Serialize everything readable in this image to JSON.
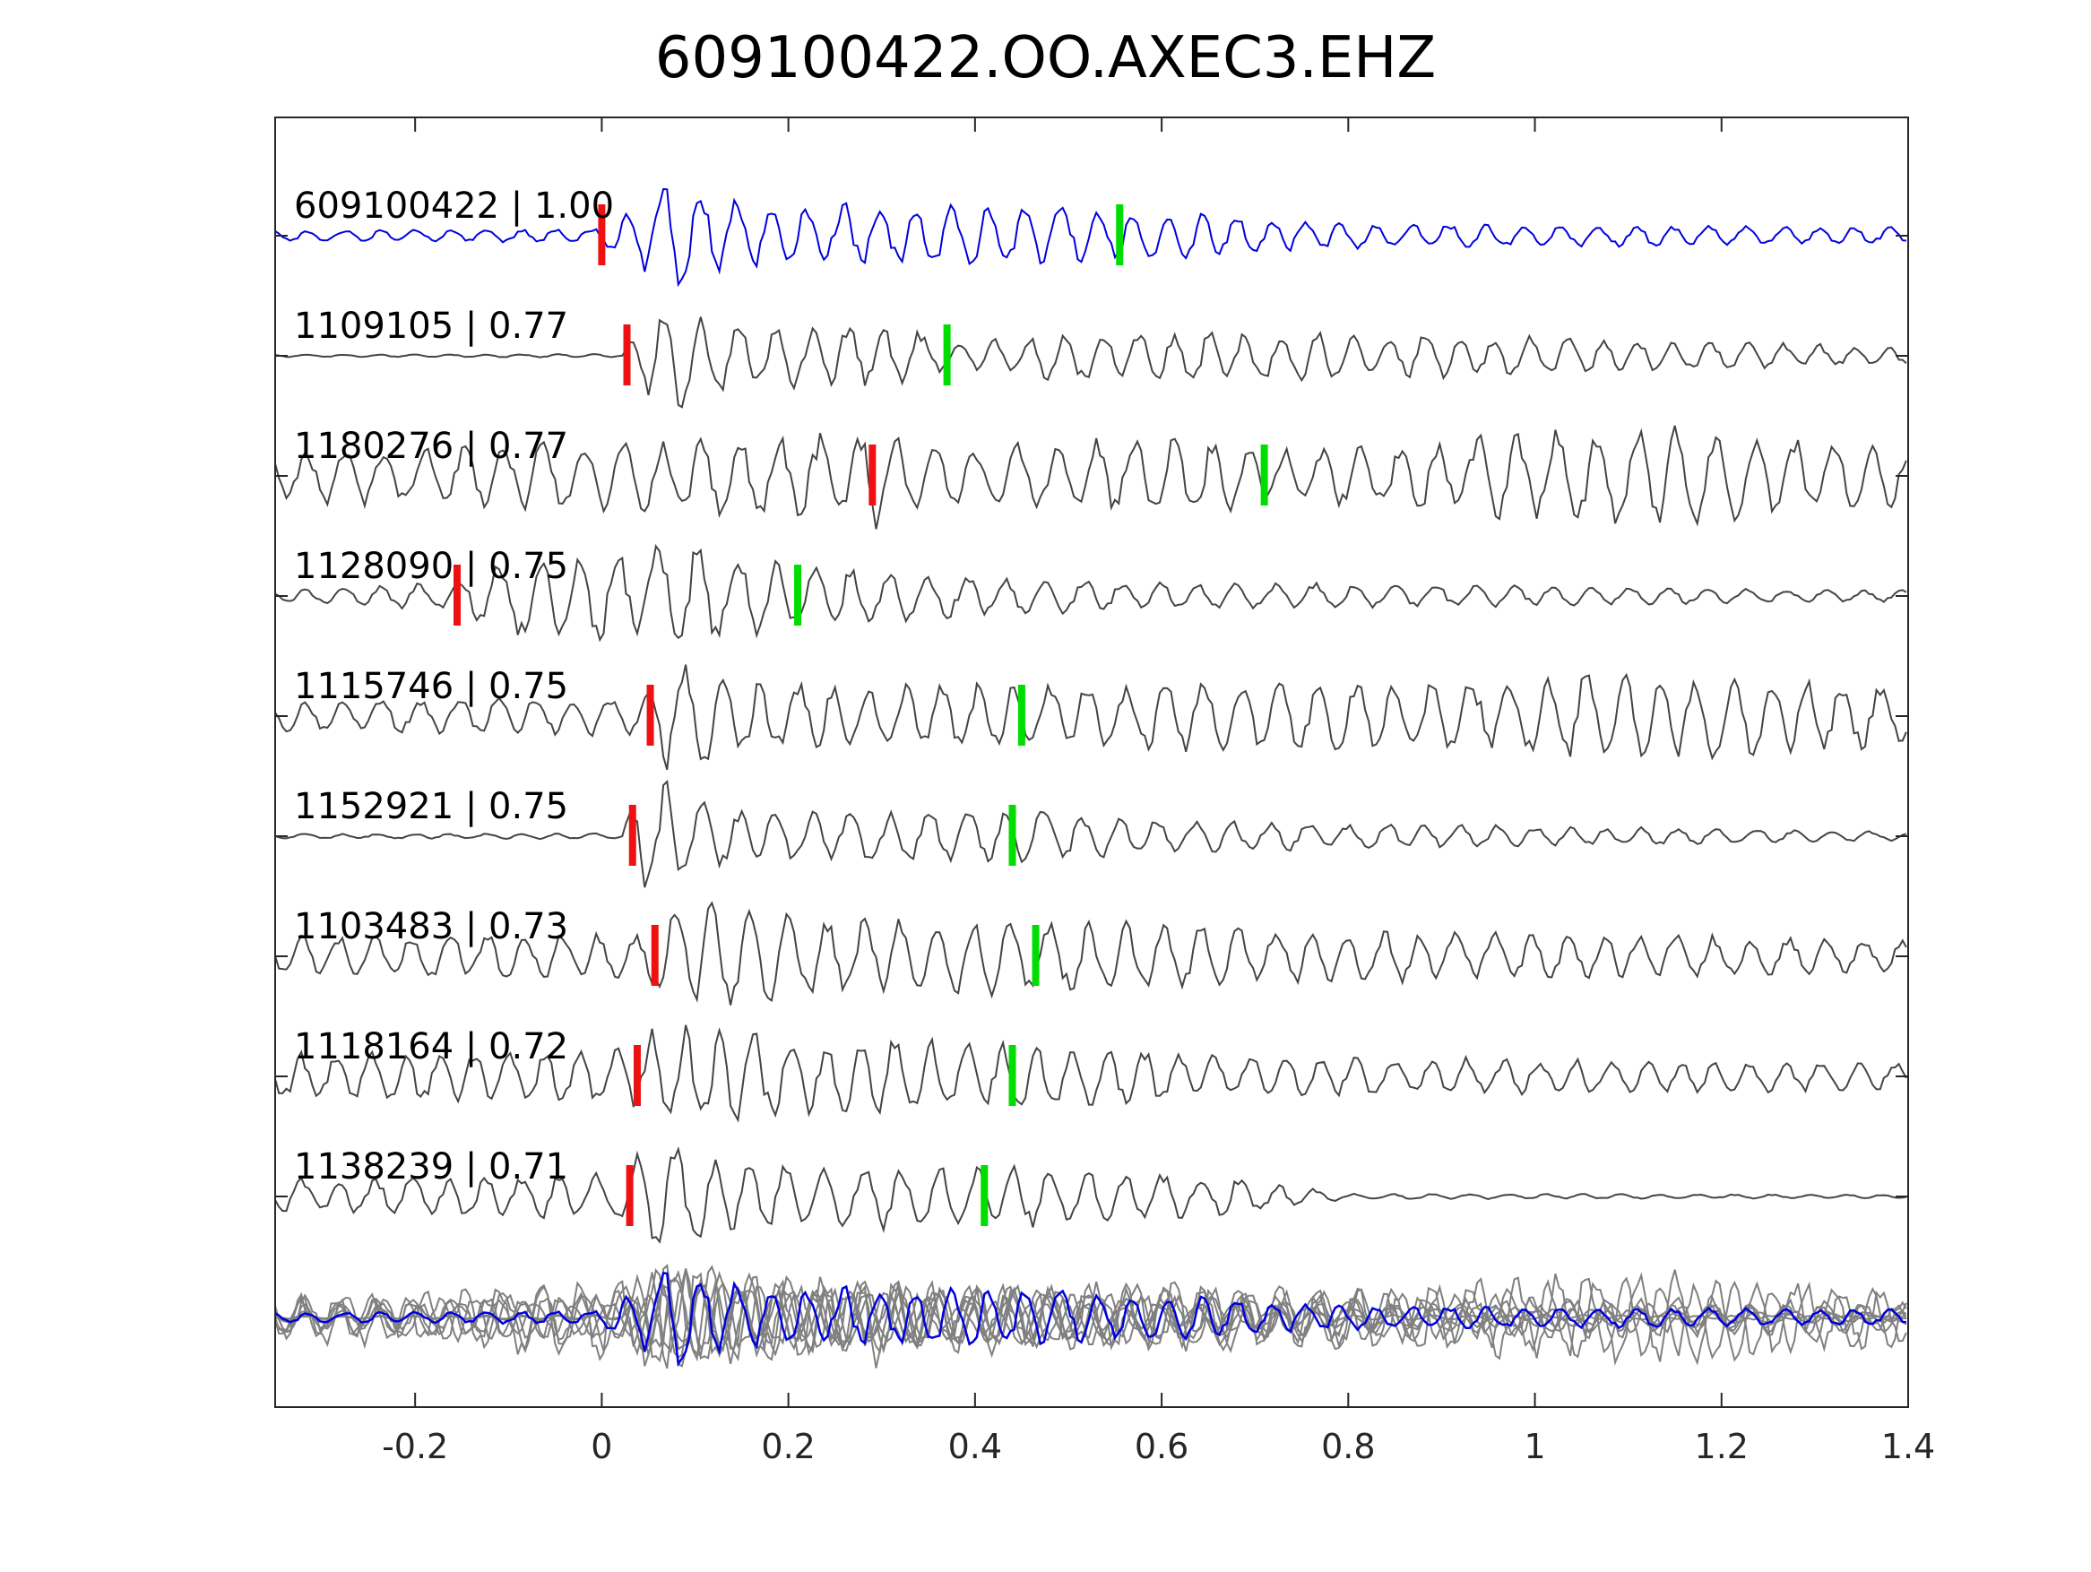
{
  "chart_data": {
    "type": "line",
    "title": "609100422.OO.AXEC3.EHZ",
    "xlabel": "",
    "ylabel": "",
    "xlim": [
      -0.35,
      1.4
    ],
    "xticks": [
      -0.2,
      0,
      0.2,
      0.4,
      0.6,
      0.8,
      1,
      1.2,
      1.4
    ],
    "xtick_labels": [
      "-0.2",
      "0",
      "0.2",
      "0.4",
      "0.6",
      "0.8",
      "1",
      "1.2",
      "1.4"
    ],
    "grid": false,
    "series": [
      {
        "name": "609100422 | 1.00",
        "color": "#0000dd",
        "p_pick": 0.0,
        "s_pick": 0.555,
        "env": [
          [
            -0.35,
            0.1
          ],
          [
            -0.01,
            0.12
          ],
          [
            0.03,
            0.45
          ],
          [
            0.08,
            1.0
          ],
          [
            0.16,
            0.6
          ],
          [
            0.3,
            0.55
          ],
          [
            0.42,
            0.55
          ],
          [
            0.62,
            0.4
          ],
          [
            0.8,
            0.22
          ],
          [
            1.4,
            0.15
          ]
        ],
        "freq": 26,
        "seed": 1
      },
      {
        "name": "1109105 | 0.77",
        "color": "#444444",
        "p_pick": 0.027,
        "s_pick": 0.37,
        "env": [
          [
            -0.35,
            0.02
          ],
          [
            0.02,
            0.03
          ],
          [
            0.04,
            0.55
          ],
          [
            0.08,
            1.0
          ],
          [
            0.16,
            0.55
          ],
          [
            0.33,
            0.5
          ],
          [
            0.38,
            0.2
          ],
          [
            0.5,
            0.45
          ],
          [
            0.75,
            0.45
          ],
          [
            1.4,
            0.15
          ]
        ],
        "freq": 26,
        "seed": 2
      },
      {
        "name": "1180276 | 0.77",
        "color": "#444444",
        "p_pick": 0.29,
        "s_pick": 0.71,
        "env": [
          [
            -0.35,
            0.45
          ],
          [
            0.1,
            0.7
          ],
          [
            0.28,
            0.75
          ],
          [
            0.29,
            1.0
          ],
          [
            0.4,
            0.5
          ],
          [
            0.62,
            0.8
          ],
          [
            0.72,
            0.45
          ],
          [
            0.85,
            0.55
          ],
          [
            1.1,
            0.95
          ],
          [
            1.4,
            0.5
          ]
        ],
        "freq": 24,
        "seed": 3
      },
      {
        "name": "1128090 | 0.75",
        "color": "#444444",
        "p_pick": -0.155,
        "s_pick": 0.21,
        "env": [
          [
            -0.35,
            0.1
          ],
          [
            -0.16,
            0.25
          ],
          [
            -0.1,
            0.7
          ],
          [
            0.05,
            0.9
          ],
          [
            0.08,
            1.0
          ],
          [
            0.2,
            0.6
          ],
          [
            0.4,
            0.35
          ],
          [
            0.6,
            0.25
          ],
          [
            1.4,
            0.1
          ]
        ],
        "freq": 24,
        "seed": 4
      },
      {
        "name": "1115746 | 0.75",
        "color": "#444444",
        "p_pick": 0.052,
        "s_pick": 0.45,
        "env": [
          [
            -0.35,
            0.25
          ],
          [
            0.04,
            0.35
          ],
          [
            0.07,
            1.0
          ],
          [
            0.2,
            0.55
          ],
          [
            0.45,
            0.6
          ],
          [
            0.9,
            0.6
          ],
          [
            1.1,
            0.8
          ],
          [
            1.4,
            0.55
          ]
        ],
        "freq": 25,
        "seed": 5
      },
      {
        "name": "1152921 | 0.75",
        "color": "#444444",
        "p_pick": 0.033,
        "s_pick": 0.44,
        "env": [
          [
            -0.35,
            0.04
          ],
          [
            0.02,
            0.05
          ],
          [
            0.04,
            0.9
          ],
          [
            0.07,
            1.0
          ],
          [
            0.14,
            0.45
          ],
          [
            0.45,
            0.45
          ],
          [
            0.7,
            0.25
          ],
          [
            1.4,
            0.08
          ]
        ],
        "freq": 25,
        "seed": 6
      },
      {
        "name": "1103483 | 0.73",
        "color": "#444444",
        "p_pick": 0.057,
        "s_pick": 0.465,
        "env": [
          [
            -0.35,
            0.35
          ],
          [
            0.04,
            0.4
          ],
          [
            0.08,
            1.0
          ],
          [
            0.25,
            0.7
          ],
          [
            0.45,
            0.65
          ],
          [
            0.8,
            0.45
          ],
          [
            1.4,
            0.3
          ]
        ],
        "freq": 25,
        "seed": 7
      },
      {
        "name": "1118164 | 0.72",
        "color": "#444444",
        "p_pick": 0.038,
        "s_pick": 0.44,
        "env": [
          [
            -0.35,
            0.4
          ],
          [
            0.03,
            0.5
          ],
          [
            0.06,
            0.9
          ],
          [
            0.2,
            0.7
          ],
          [
            0.44,
            0.6
          ],
          [
            0.7,
            0.35
          ],
          [
            1.4,
            0.25
          ]
        ],
        "freq": 26,
        "seed": 8
      },
      {
        "name": "1138239 | 0.71",
        "color": "#444444",
        "p_pick": 0.03,
        "s_pick": 0.41,
        "env": [
          [
            -0.35,
            0.3
          ],
          [
            0.02,
            0.4
          ],
          [
            0.05,
            1.0
          ],
          [
            0.15,
            0.6
          ],
          [
            0.4,
            0.55
          ],
          [
            0.65,
            0.4
          ],
          [
            0.8,
            0.05
          ],
          [
            1.4,
            0.03
          ]
        ],
        "freq": 25,
        "seed": 9
      }
    ],
    "stack": {
      "template_color": "#0000dd",
      "member_color": "#808080"
    },
    "p_pick_color": "#ee1111",
    "s_pick_color": "#00dd00"
  }
}
